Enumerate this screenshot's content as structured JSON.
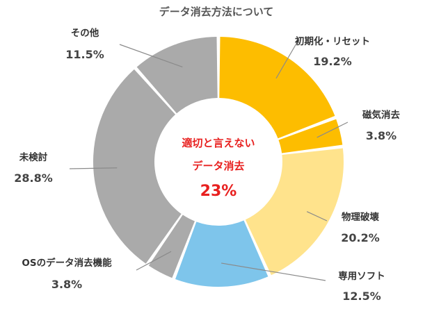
{
  "chart_data": {
    "type": "pie",
    "title": "データ消去方法について",
    "donut": true,
    "slices": [
      {
        "label": "初期化・リセット",
        "value": 19.2,
        "value_label": "19.2%",
        "color": "#fdbd00"
      },
      {
        "label": "磁気消去",
        "value": 3.8,
        "value_label": "3.8%",
        "color": "#fdbd00"
      },
      {
        "label": "物理破壊",
        "value": 20.2,
        "value_label": "20.2%",
        "color": "#ffe38c"
      },
      {
        "label": "専用ソフト",
        "value": 12.5,
        "value_label": "12.5%",
        "color": "#7ec5eb"
      },
      {
        "label": "OSのデータ消去機能",
        "value": 3.8,
        "value_label": "3.8%",
        "color": "#aaaaaa"
      },
      {
        "label": "未検討",
        "value": 28.8,
        "value_label": "28.8%",
        "color": "#aaaaaa"
      },
      {
        "label": "その他",
        "value": 11.5,
        "value_label": "11.5%",
        "color": "#aaaaaa"
      }
    ],
    "center": {
      "line1": "適切と言えない",
      "line2": "データ消去",
      "value": "23%"
    },
    "center_color": "#e8201f"
  }
}
